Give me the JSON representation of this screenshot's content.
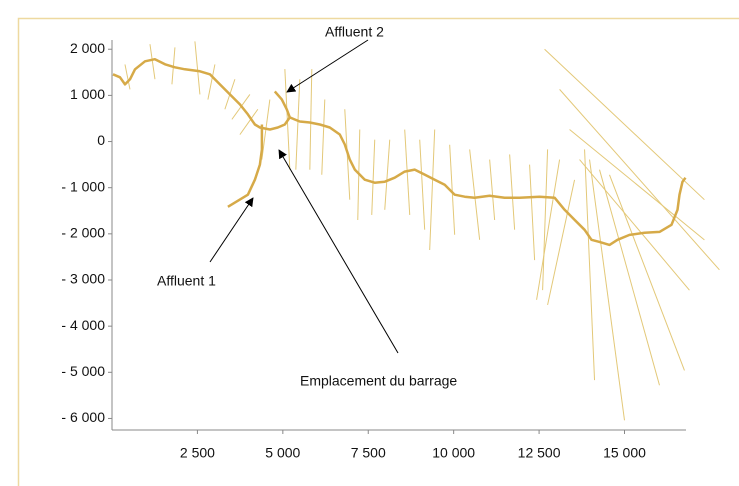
{
  "chart_data": {
    "type": "line",
    "xlim": [
      0,
      16800
    ],
    "ylim": [
      -6250,
      2200
    ],
    "xticks": [
      {
        "value": 2500,
        "label": "2 500"
      },
      {
        "value": 5000,
        "label": "5 000"
      },
      {
        "value": 7500,
        "label": "7 500"
      },
      {
        "value": 10000,
        "label": "10 000"
      },
      {
        "value": 12500,
        "label": "12 500"
      },
      {
        "value": 15000,
        "label": "15 000"
      }
    ],
    "yticks": [
      {
        "value": 2000,
        "label": "2 000"
      },
      {
        "value": 1000,
        "label": "1 000"
      },
      0,
      {
        "value": -1000,
        "label": "- 1 000"
      },
      {
        "value": -2000,
        "label": "- 2 000"
      },
      {
        "value": -3000,
        "label": "- 3 000"
      },
      {
        "value": -4000,
        "label": "- 4 000"
      },
      {
        "value": -5000,
        "label": "- 5 000"
      },
      {
        "value": -6000,
        "label": "- 6 000"
      }
    ],
    "annotations": [
      "Affluent 2",
      "Affluent 1",
      "Emplacement du barrage"
    ],
    "cross_section_color": "#e3c878",
    "cross_sections": [
      {
        "x": [
          526,
          380
        ],
        "y": [
          1130,
          1670
        ]
      },
      {
        "x": [
          1111,
          1257
        ],
        "y": [
          2110,
          1350
        ]
      },
      {
        "x": [
          1842,
          1754
        ],
        "y": [
          2040,
          1240
        ]
      },
      {
        "x": [
          2427,
          2573
        ],
        "y": [
          2170,
          1020
        ]
      },
      {
        "x": [
          3012,
          2807
        ],
        "y": [
          1670,
          910
        ]
      },
      {
        "x": [
          3597,
          3304
        ],
        "y": [
          1350,
          700
        ]
      },
      {
        "x": [
          4035,
          3509
        ],
        "y": [
          1020,
          480
        ]
      },
      {
        "x": [
          4269,
          3743
        ],
        "y": [
          700,
          150
        ]
      },
      {
        "x": [
          4620,
          4386
        ],
        "y": [
          910,
          -390
        ]
      },
      {
        "x": [
          5059,
          5205
        ],
        "y": [
          1570,
          -610
        ]
      },
      {
        "x": [
          5497,
          5380
        ],
        "y": [
          1350,
          -610
        ]
      },
      {
        "x": [
          5848,
          5790
        ],
        "y": [
          1570,
          -610
        ]
      },
      {
        "x": [
          6228,
          6140
        ],
        "y": [
          910,
          -720
        ]
      },
      {
        "x": [
          6813,
          6959
        ],
        "y": [
          700,
          -1260
        ]
      },
      {
        "x": [
          7252,
          7193
        ],
        "y": [
          260,
          -1700
        ]
      },
      {
        "x": [
          7690,
          7602
        ],
        "y": [
          40,
          -1590
        ]
      },
      {
        "x": [
          8129,
          7983
        ],
        "y": [
          40,
          -1480
        ]
      },
      {
        "x": [
          8567,
          8714
        ],
        "y": [
          260,
          -1590
        ]
      },
      {
        "x": [
          9006,
          9152
        ],
        "y": [
          40,
          -1910
        ]
      },
      {
        "x": [
          9445,
          9298
        ],
        "y": [
          260,
          -2350
        ]
      },
      {
        "x": [
          9883,
          10029
        ],
        "y": [
          -70,
          -2020
        ]
      },
      {
        "x": [
          10468,
          10760
        ],
        "y": [
          -170,
          -2130
        ]
      },
      {
        "x": [
          11053,
          11199
        ],
        "y": [
          -390,
          -1700
        ]
      },
      {
        "x": [
          11638,
          11784
        ],
        "y": [
          -280,
          -1910
        ]
      },
      {
        "x": [
          12222,
          12369
        ],
        "y": [
          -500,
          -2570
        ]
      },
      {
        "x": [
          12749,
          12603
        ],
        "y": [
          -170,
          -3220
        ]
      },
      {
        "x": [
          13100,
          12427
        ],
        "y": [
          -390,
          -3430
        ]
      },
      {
        "x": [
          13538,
          12749
        ],
        "y": [
          -830,
          -3540
        ]
      },
      {
        "x": [
          13831,
          14123
        ],
        "y": [
          -170,
          -5170
        ]
      },
      {
        "x": [
          13977,
          15000
        ],
        "y": [
          -390,
          -6040
        ]
      },
      {
        "x": [
          14269,
          16024
        ],
        "y": [
          -610,
          -5280
        ]
      },
      {
        "x": [
          14561,
          16755
        ],
        "y": [
          -720,
          -4960
        ]
      },
      {
        "x": [
          12661,
          17339
        ],
        "y": [
          2000,
          -1260
        ]
      },
      {
        "x": [
          13100,
          17778
        ],
        "y": [
          1130,
          -2780
        ]
      },
      {
        "x": [
          13392,
          17339
        ],
        "y": [
          260,
          -2130
        ]
      },
      {
        "x": [
          13684,
          16901
        ],
        "y": [
          -390,
          -3220
        ]
      }
    ],
    "series": [
      {
        "color": "#d6aa48",
        "x": [
          29,
          234,
          380,
          526,
          672,
          965,
          1257,
          1550,
          1842,
          2134,
          2573,
          2866,
          3158,
          3450,
          3743,
          3977,
          4182,
          4328,
          4620,
          4854,
          5059,
          5205,
          5351,
          5497,
          5790,
          6082,
          6374,
          6667,
          6813,
          6959,
          7105,
          7398,
          7690,
          7983,
          8275,
          8567,
          8860,
          9152,
          9445,
          9737,
          10029,
          10322,
          10614,
          11053,
          11491,
          11930,
          12515,
          12953,
          13246,
          13538,
          13831,
          14035,
          14269,
          14561,
          14795,
          15146,
          15585,
          16024,
          16375,
          16550,
          16609,
          16697,
          16785
        ],
        "values": [
          1457,
          1391,
          1239,
          1348,
          1565,
          1739,
          1783,
          1674,
          1609,
          1565,
          1522,
          1457,
          1239,
          1022,
          804,
          587,
          370,
          304,
          261,
          304,
          370,
          522,
          478,
          435,
          413,
          370,
          304,
          152,
          -65,
          -391,
          -609,
          -826,
          -891,
          -870,
          -783,
          -652,
          -609,
          -717,
          -826,
          -935,
          -1152,
          -1196,
          -1217,
          -1174,
          -1217,
          -1217,
          -1196,
          -1217,
          -1478,
          -1696,
          -1913,
          -2130,
          -2174,
          -2239,
          -2130,
          -2022,
          -1978,
          -1957,
          -1804,
          -1478,
          -1152,
          -870,
          -783
        ]
      },
      {
        "color": "#d6aa48",
        "x": [
          3392,
          3977,
          4182,
          4328,
          4386,
          4386,
          4386
        ],
        "values": [
          -1413,
          -1152,
          -826,
          -500,
          -174,
          130,
          370
        ]
      },
      {
        "color": "#d6aa48",
        "x": [
          4766,
          4971,
          5117,
          5205
        ],
        "values": [
          1087,
          913,
          696,
          522
        ]
      }
    ]
  }
}
